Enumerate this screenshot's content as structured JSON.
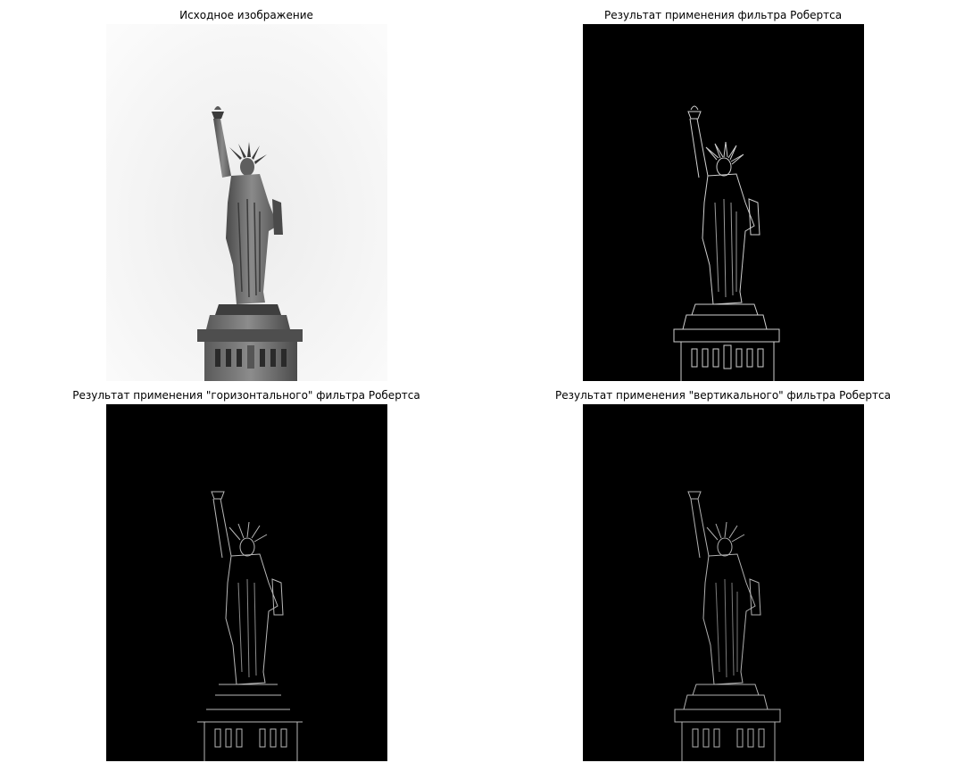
{
  "panels": [
    {
      "title": "Исходное изображение",
      "kind": "original"
    },
    {
      "title": "Результат применения фильтра Робертса",
      "kind": "edges-combined"
    },
    {
      "title": "Результат применения \"горизонтального\" фильтра Робертса",
      "kind": "edges-horizontal"
    },
    {
      "title": "Результат применения \"вертикального\" фильтра Робертса",
      "kind": "edges-vertical"
    }
  ],
  "colors": {
    "background": "#ffffff",
    "edge_background": "#000000",
    "sky": "#f4f4f4",
    "statue": "#6e6e6e",
    "edge_line": "#d0d0d0"
  }
}
